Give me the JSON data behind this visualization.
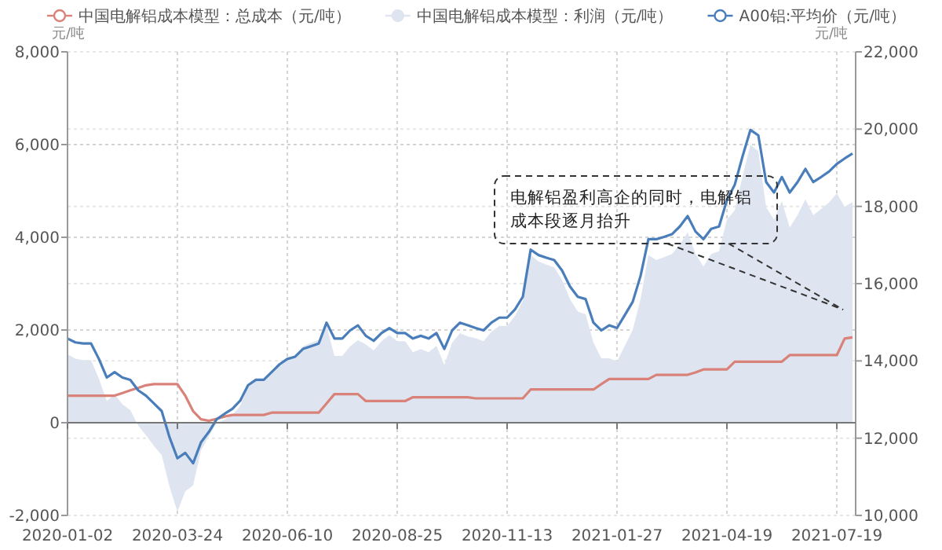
{
  "chart_data": {
    "type": "line",
    "categories": [
      "2020-01-02",
      null,
      null,
      null,
      null,
      null,
      null,
      null,
      null,
      null,
      null,
      null,
      null,
      null,
      "2020-03-24",
      null,
      null,
      null,
      null,
      null,
      null,
      null,
      null,
      null,
      null,
      null,
      null,
      null,
      "2020-06-10",
      null,
      null,
      null,
      null,
      null,
      null,
      null,
      null,
      null,
      null,
      null,
      null,
      null,
      "2020-08-25",
      null,
      null,
      null,
      null,
      null,
      null,
      null,
      null,
      null,
      null,
      null,
      null,
      null,
      "2020-11-13",
      null,
      null,
      null,
      null,
      null,
      null,
      null,
      null,
      null,
      null,
      null,
      null,
      null,
      "2021-01-27",
      null,
      null,
      null,
      null,
      null,
      null,
      null,
      null,
      null,
      null,
      null,
      null,
      null,
      "2021-04-19",
      null,
      null,
      null,
      null,
      null,
      null,
      null,
      null,
      null,
      null,
      null,
      null,
      null,
      "2021-07-19",
      null,
      null
    ],
    "series": [
      {
        "name": "中国电解铝成本模型：总成本（元/吨）",
        "color": "#d9827a",
        "axis": "y2",
        "values": [
          13100,
          13100,
          13100,
          13100,
          13100,
          13100,
          13100,
          13170,
          13240,
          13300,
          13370,
          13400,
          13400,
          13400,
          13400,
          13100,
          12700,
          12490,
          12450,
          12500,
          12560,
          12600,
          12600,
          12600,
          12600,
          12600,
          12660,
          12660,
          12660,
          12660,
          12660,
          12660,
          12660,
          12900,
          13140,
          13140,
          13140,
          13140,
          12960,
          12960,
          12960,
          12960,
          12960,
          12960,
          13060,
          13060,
          13060,
          13060,
          13060,
          13060,
          13060,
          13060,
          13030,
          13030,
          13030,
          13030,
          13030,
          13030,
          13030,
          13260,
          13260,
          13260,
          13260,
          13260,
          13260,
          13260,
          13260,
          13260,
          13400,
          13530,
          13530,
          13530,
          13530,
          13530,
          13530,
          13640,
          13640,
          13640,
          13640,
          13640,
          13700,
          13780,
          13780,
          13780,
          13780,
          13980,
          13980,
          13980,
          13980,
          13980,
          13980,
          13980,
          14150,
          14150,
          14150,
          14150,
          14150,
          14150,
          14150,
          14580,
          14610
        ]
      },
      {
        "name": "中国电解铝成本模型：利润（元/吨）",
        "type": "area",
        "color": "#dfe5f0",
        "values": [
          1480,
          1380,
          1350,
          1350,
          950,
          470,
          610,
          400,
          270,
          -60,
          -270,
          -500,
          -700,
          -1380,
          -1920,
          -1480,
          -1350,
          -600,
          -290,
          -10,
          70,
          160,
          370,
          770,
          910,
          910,
          1050,
          1250,
          1390,
          1450,
          1650,
          1720,
          1790,
          2090,
          1440,
          1440,
          1650,
          1780,
          1690,
          1560,
          1760,
          1890,
          1760,
          1760,
          1520,
          1590,
          1520,
          1660,
          1250,
          1730,
          1930,
          1860,
          1820,
          1760,
          1960,
          2090,
          2090,
          2300,
          2630,
          3620,
          3480,
          3410,
          3350,
          3080,
          2670,
          2400,
          2340,
          1730,
          1390,
          1390,
          1320,
          1660,
          2000,
          2670,
          3620,
          3510,
          3570,
          3640,
          3840,
          4110,
          3650,
          3370,
          3640,
          3700,
          4380,
          4580,
          5320,
          6000,
          5860,
          4650,
          4380,
          4780,
          4210,
          4480,
          4820,
          4480,
          4610,
          4750,
          4950,
          4660,
          4760
        ]
      },
      {
        "name": "A00铝:平均价（元/吨）",
        "color": "#4a7ebb",
        "axis": "y2",
        "values": [
          14580,
          14480,
          14450,
          14450,
          14050,
          13570,
          13710,
          13570,
          13510,
          13240,
          13100,
          12900,
          12700,
          12020,
          11480,
          11620,
          11350,
          11890,
          12160,
          12490,
          12630,
          12760,
          12970,
          13370,
          13510,
          13510,
          13710,
          13910,
          14050,
          14110,
          14310,
          14380,
          14450,
          14990,
          14580,
          14580,
          14790,
          14920,
          14650,
          14520,
          14720,
          14850,
          14720,
          14720,
          14580,
          14650,
          14580,
          14720,
          14310,
          14790,
          14990,
          14920,
          14850,
          14790,
          14990,
          15120,
          15120,
          15330,
          15660,
          16880,
          16740,
          16670,
          16610,
          16340,
          15930,
          15660,
          15600,
          14990,
          14790,
          14920,
          14850,
          15190,
          15530,
          16200,
          17150,
          17150,
          17210,
          17280,
          17480,
          17750,
          17350,
          17150,
          17420,
          17480,
          18160,
          18560,
          19300,
          19980,
          19840,
          18630,
          18360,
          18760,
          18360,
          18630,
          18970,
          18630,
          18760,
          18900,
          19100,
          19240,
          19370
        ]
      }
    ],
    "ylim": [
      -2000,
      8000
    ],
    "yticks": [
      {
        "value": -2000,
        "label": "-2,000"
      },
      {
        "value": 0,
        "label": "0"
      },
      {
        "value": 2000,
        "label": "2,000"
      },
      {
        "value": 4000,
        "label": "4,000"
      },
      {
        "value": 6000,
        "label": "6,000"
      },
      {
        "value": 8000,
        "label": "8,000"
      }
    ],
    "y2lim": [
      10000,
      22000
    ],
    "y2ticks": [
      {
        "value": 10000,
        "label": "10,000"
      },
      {
        "value": 12000,
        "label": "12,000"
      },
      {
        "value": 14000,
        "label": "14,000"
      },
      {
        "value": 16000,
        "label": "16,000"
      },
      {
        "value": 18000,
        "label": "18,000"
      },
      {
        "value": 20000,
        "label": "20,000"
      },
      {
        "value": 22000,
        "label": "22,000"
      }
    ],
    "ylabel": "元/吨",
    "y2label": "元/吨",
    "grid": true,
    "legend": "top",
    "annotations": [
      "电解铝盈利高企的同时，电解铝成本段逐月抬升"
    ]
  }
}
